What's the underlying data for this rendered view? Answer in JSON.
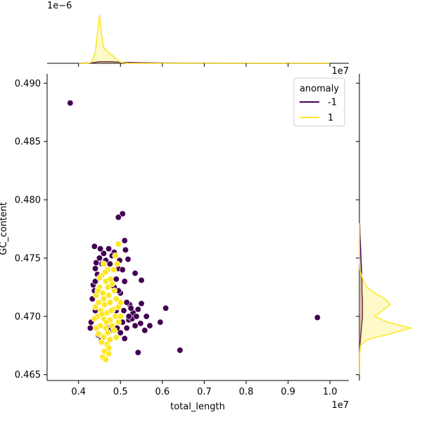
{
  "chart_data": {
    "type": "scatter",
    "xlabel": "total_length",
    "ylabel": "GC_content",
    "x_offset_label": "1e7",
    "y_offset_label": "",
    "xlim": [
      3250000,
      10450000
    ],
    "ylim": [
      0.4645,
      0.4908
    ],
    "xticks": [
      {
        "value": 4000000,
        "label": "0.4"
      },
      {
        "value": 5000000,
        "label": "0.5"
      },
      {
        "value": 6000000,
        "label": "0.6"
      },
      {
        "value": 7000000,
        "label": "0.7"
      },
      {
        "value": 8000000,
        "label": "0.8"
      },
      {
        "value": 9000000,
        "label": "0.9"
      },
      {
        "value": 10000000,
        "label": "1.0"
      }
    ],
    "yticks": [
      {
        "value": 0.465,
        "label": "0.465"
      },
      {
        "value": 0.47,
        "label": "0.470"
      },
      {
        "value": 0.475,
        "label": "0.475"
      },
      {
        "value": 0.48,
        "label": "0.480"
      },
      {
        "value": 0.485,
        "label": "0.485"
      },
      {
        "value": 0.49,
        "label": "0.490"
      }
    ],
    "legend": {
      "title": "anomaly",
      "placement": "top-right"
    },
    "top_marginal": {
      "offset_label": "1e−6"
    },
    "series": [
      {
        "name": "-1",
        "color": "#440154",
        "points": [
          [
            3800000,
            0.4883
          ],
          [
            5050000,
            0.4788
          ],
          [
            4950000,
            0.4785
          ],
          [
            6420000,
            0.4671
          ],
          [
            5420000,
            0.4669
          ],
          [
            9700000,
            0.4699
          ],
          [
            6080000,
            0.4707
          ],
          [
            5500000,
            0.4731
          ],
          [
            5350000,
            0.4737
          ],
          [
            5180000,
            0.4749
          ],
          [
            5120000,
            0.4757
          ],
          [
            5100000,
            0.4765
          ],
          [
            4950000,
            0.4741
          ],
          [
            4380000,
            0.476
          ],
          [
            4300000,
            0.4695
          ],
          [
            4280000,
            0.469
          ],
          [
            5950000,
            0.4695
          ],
          [
            5620000,
            0.47
          ],
          [
            5700000,
            0.4692
          ],
          [
            5500000,
            0.4711
          ],
          [
            5420000,
            0.4706
          ],
          [
            5300000,
            0.4703
          ],
          [
            5200000,
            0.4697
          ],
          [
            5150000,
            0.469
          ],
          [
            5350000,
            0.4692
          ],
          [
            5480000,
            0.4694
          ],
          [
            5580000,
            0.4688
          ],
          [
            5100000,
            0.4681
          ],
          [
            5000000,
            0.4686
          ],
          [
            5220000,
            0.471
          ],
          [
            5280000,
            0.4698
          ],
          [
            5380000,
            0.47
          ],
          [
            4850000,
            0.4755
          ],
          [
            4720000,
            0.4758
          ],
          [
            4600000,
            0.4754
          ],
          [
            4520000,
            0.4758
          ],
          [
            4800000,
            0.4752
          ],
          [
            4420000,
            0.4746
          ],
          [
            4400000,
            0.4741
          ],
          [
            4450000,
            0.4736
          ],
          [
            4350000,
            0.4727
          ],
          [
            4380000,
            0.4722
          ],
          [
            4330000,
            0.4715
          ],
          [
            4400000,
            0.4705
          ],
          [
            4420000,
            0.469
          ],
          [
            4470000,
            0.4684
          ],
          [
            4550000,
            0.468
          ],
          [
            4680000,
            0.4676
          ],
          [
            4920000,
            0.469
          ],
          [
            5050000,
            0.4695
          ],
          [
            4820000,
            0.4688
          ],
          [
            4700000,
            0.469
          ],
          [
            5080000,
            0.4705
          ],
          [
            5150000,
            0.4712
          ],
          [
            5000000,
            0.472
          ],
          [
            5100000,
            0.473
          ],
          [
            5050000,
            0.474
          ],
          [
            4980000,
            0.4748
          ],
          [
            5200000,
            0.47
          ],
          [
            5250000,
            0.4707
          ],
          [
            4560000,
            0.4745
          ],
          [
            4500000,
            0.475
          ],
          [
            4650000,
            0.4748
          ],
          [
            4750000,
            0.4745
          ],
          [
            4900000,
            0.4732
          ],
          [
            4950000,
            0.4722
          ],
          [
            4850000,
            0.4725
          ],
          [
            4900000,
            0.4705
          ],
          [
            4400000,
            0.473
          ],
          [
            4480000,
            0.4712
          ]
        ]
      },
      {
        "name": "1",
        "color": "#fde725",
        "points": [
          [
            4950000,
            0.4762
          ],
          [
            4880000,
            0.4752
          ],
          [
            4600000,
            0.4745
          ],
          [
            4700000,
            0.474
          ],
          [
            4550000,
            0.4735
          ],
          [
            4650000,
            0.473
          ],
          [
            4800000,
            0.4728
          ],
          [
            4500000,
            0.4725
          ],
          [
            4580000,
            0.472
          ],
          [
            4720000,
            0.4718
          ],
          [
            4850000,
            0.4722
          ],
          [
            4420000,
            0.4718
          ],
          [
            4480000,
            0.4712
          ],
          [
            4620000,
            0.471
          ],
          [
            4750000,
            0.4712
          ],
          [
            4900000,
            0.4715
          ],
          [
            4530000,
            0.4705
          ],
          [
            4680000,
            0.4703
          ],
          [
            4820000,
            0.4706
          ],
          [
            4950000,
            0.4708
          ],
          [
            4450000,
            0.47
          ],
          [
            4600000,
            0.4698
          ],
          [
            4750000,
            0.4697
          ],
          [
            4880000,
            0.47
          ],
          [
            4520000,
            0.4692
          ],
          [
            4650000,
            0.469
          ],
          [
            4800000,
            0.4692
          ],
          [
            4950000,
            0.4695
          ],
          [
            4480000,
            0.4685
          ],
          [
            4580000,
            0.4683
          ],
          [
            4700000,
            0.4686
          ],
          [
            4850000,
            0.4688
          ],
          [
            4550000,
            0.4678
          ],
          [
            4680000,
            0.4676
          ],
          [
            4620000,
            0.467
          ],
          [
            4580000,
            0.4665
          ],
          [
            4650000,
            0.4663
          ],
          [
            4720000,
            0.4668
          ],
          [
            4750000,
            0.468
          ],
          [
            4900000,
            0.4682
          ],
          [
            5000000,
            0.47
          ],
          [
            5000000,
            0.4712
          ],
          [
            4400000,
            0.4708
          ],
          [
            4380000,
            0.4698
          ],
          [
            4420000,
            0.469
          ],
          [
            4700000,
            0.4725
          ],
          [
            4600000,
            0.4715
          ],
          [
            4660000,
            0.4695
          ],
          [
            4560000,
            0.4702
          ],
          [
            4780000,
            0.4705
          ],
          [
            4500000,
            0.4733
          ],
          [
            4640000,
            0.4738
          ],
          [
            4760000,
            0.4732
          ],
          [
            4840000,
            0.474
          ],
          [
            4920000,
            0.4745
          ],
          [
            4460000,
            0.4722
          ],
          [
            4600000,
            0.4682
          ],
          [
            4720000,
            0.4673
          ]
        ]
      }
    ],
    "marginal_x": {
      "note": "KDE density per series over total_length",
      "x": [
        4000000,
        4200000,
        4300000,
        4400000,
        4450000,
        4500000,
        4550000,
        4600000,
        4700000,
        4800000,
        4900000,
        5000000,
        5200000,
        5500000,
        6000000,
        7000000,
        8000000,
        9000000,
        10000000
      ],
      "series": [
        {
          "name": "-1",
          "values": [
            0.0,
            0.005,
            0.01,
            0.02,
            0.025,
            0.03,
            0.03,
            0.03,
            0.03,
            0.03,
            0.025,
            0.02,
            0.015,
            0.01,
            0.005,
            0.002,
            0.0,
            0.0,
            0.0
          ]
        },
        {
          "name": "1",
          "values": [
            0.0,
            0.0,
            0.02,
            0.2,
            0.6,
            0.96,
            0.55,
            0.32,
            0.22,
            0.16,
            0.08,
            0.02,
            0.0,
            0.0,
            0.0,
            0.0,
            0.0,
            0.0,
            0.0
          ]
        }
      ]
    },
    "marginal_y": {
      "note": "KDE density per series over GC_content",
      "y": [
        0.465,
        0.4665,
        0.4675,
        0.468,
        0.4685,
        0.469,
        0.4695,
        0.47,
        0.4705,
        0.471,
        0.4715,
        0.472,
        0.4725,
        0.473,
        0.474,
        0.475,
        0.476,
        0.477,
        0.478
      ],
      "series": [
        {
          "name": "-1",
          "values": [
            0.0,
            0.0,
            0.01,
            0.02,
            0.03,
            0.04,
            0.05,
            0.06,
            0.06,
            0.06,
            0.06,
            0.05,
            0.05,
            0.05,
            0.04,
            0.03,
            0.02,
            0.01,
            0.005
          ]
        },
        {
          "name": "1",
          "values": [
            0.0,
            0.0,
            0.02,
            0.15,
            0.6,
            1.0,
            0.55,
            0.3,
            0.45,
            0.6,
            0.5,
            0.3,
            0.15,
            0.08,
            0.01,
            0.0,
            0.0,
            0.0,
            0.0
          ]
        }
      ]
    }
  }
}
